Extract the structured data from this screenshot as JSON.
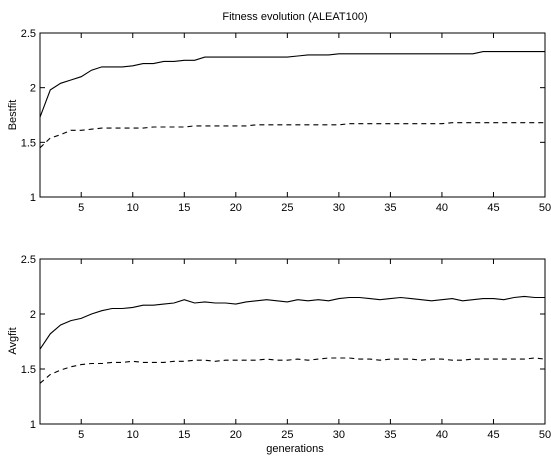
{
  "chart_data": [
    {
      "type": "line",
      "title": "Fitness evolution (ALEAT100)",
      "xlabel": "",
      "ylabel": "Bestfit",
      "xlim": [
        1,
        50
      ],
      "ylim": [
        1,
        2.5
      ],
      "xticks": [
        5,
        10,
        15,
        20,
        25,
        30,
        35,
        40,
        45,
        50
      ],
      "yticks": [
        1,
        1.5,
        2,
        2.5
      ],
      "grid": false,
      "x": [
        1,
        2,
        3,
        4,
        5,
        6,
        7,
        8,
        9,
        10,
        11,
        12,
        13,
        14,
        15,
        16,
        17,
        18,
        19,
        20,
        21,
        22,
        23,
        24,
        25,
        26,
        27,
        28,
        29,
        30,
        31,
        32,
        33,
        34,
        35,
        36,
        37,
        38,
        39,
        40,
        41,
        42,
        43,
        44,
        45,
        46,
        47,
        48,
        49,
        50
      ],
      "series": [
        {
          "style": "solid",
          "color": "#000000",
          "values": [
            1.73,
            1.98,
            2.04,
            2.07,
            2.1,
            2.16,
            2.19,
            2.19,
            2.19,
            2.2,
            2.22,
            2.22,
            2.24,
            2.24,
            2.25,
            2.25,
            2.28,
            2.28,
            2.28,
            2.28,
            2.28,
            2.28,
            2.28,
            2.28,
            2.28,
            2.29,
            2.3,
            2.3,
            2.3,
            2.31,
            2.31,
            2.31,
            2.31,
            2.31,
            2.31,
            2.31,
            2.31,
            2.31,
            2.31,
            2.31,
            2.31,
            2.31,
            2.31,
            2.33,
            2.33,
            2.33,
            2.33,
            2.33,
            2.33,
            2.33
          ]
        },
        {
          "style": "dashed",
          "color": "#000000",
          "values": [
            1.45,
            1.54,
            1.57,
            1.61,
            1.61,
            1.62,
            1.63,
            1.63,
            1.63,
            1.63,
            1.63,
            1.64,
            1.64,
            1.64,
            1.64,
            1.65,
            1.65,
            1.65,
            1.65,
            1.65,
            1.65,
            1.66,
            1.66,
            1.66,
            1.66,
            1.66,
            1.66,
            1.66,
            1.66,
            1.66,
            1.67,
            1.67,
            1.67,
            1.67,
            1.67,
            1.67,
            1.67,
            1.67,
            1.67,
            1.67,
            1.68,
            1.68,
            1.68,
            1.68,
            1.68,
            1.68,
            1.68,
            1.68,
            1.68,
            1.68
          ]
        }
      ]
    },
    {
      "type": "line",
      "title": "",
      "xlabel": "generations",
      "ylabel": "Avgfit",
      "xlim": [
        1,
        50
      ],
      "ylim": [
        1,
        2.5
      ],
      "xticks": [
        5,
        10,
        15,
        20,
        25,
        30,
        35,
        40,
        45,
        50
      ],
      "yticks": [
        1,
        1.5,
        2,
        2.5
      ],
      "grid": false,
      "x": [
        1,
        2,
        3,
        4,
        5,
        6,
        7,
        8,
        9,
        10,
        11,
        12,
        13,
        14,
        15,
        16,
        17,
        18,
        19,
        20,
        21,
        22,
        23,
        24,
        25,
        26,
        27,
        28,
        29,
        30,
        31,
        32,
        33,
        34,
        35,
        36,
        37,
        38,
        39,
        40,
        41,
        42,
        43,
        44,
        45,
        46,
        47,
        48,
        49,
        50
      ],
      "series": [
        {
          "style": "solid",
          "color": "#000000",
          "values": [
            1.68,
            1.82,
            1.9,
            1.94,
            1.96,
            2.0,
            2.03,
            2.05,
            2.05,
            2.06,
            2.08,
            2.08,
            2.09,
            2.1,
            2.13,
            2.1,
            2.11,
            2.1,
            2.1,
            2.09,
            2.11,
            2.12,
            2.13,
            2.12,
            2.11,
            2.13,
            2.12,
            2.13,
            2.12,
            2.14,
            2.15,
            2.15,
            2.14,
            2.13,
            2.14,
            2.15,
            2.14,
            2.13,
            2.12,
            2.13,
            2.14,
            2.12,
            2.13,
            2.14,
            2.14,
            2.13,
            2.15,
            2.16,
            2.15,
            2.15
          ]
        },
        {
          "style": "dashed",
          "color": "#000000",
          "values": [
            1.37,
            1.45,
            1.49,
            1.52,
            1.54,
            1.55,
            1.55,
            1.56,
            1.56,
            1.57,
            1.56,
            1.56,
            1.56,
            1.57,
            1.57,
            1.58,
            1.58,
            1.57,
            1.58,
            1.58,
            1.58,
            1.58,
            1.59,
            1.58,
            1.58,
            1.59,
            1.58,
            1.59,
            1.6,
            1.6,
            1.6,
            1.59,
            1.59,
            1.58,
            1.59,
            1.59,
            1.59,
            1.58,
            1.59,
            1.59,
            1.58,
            1.58,
            1.59,
            1.59,
            1.59,
            1.59,
            1.59,
            1.59,
            1.6,
            1.59
          ]
        }
      ]
    }
  ]
}
